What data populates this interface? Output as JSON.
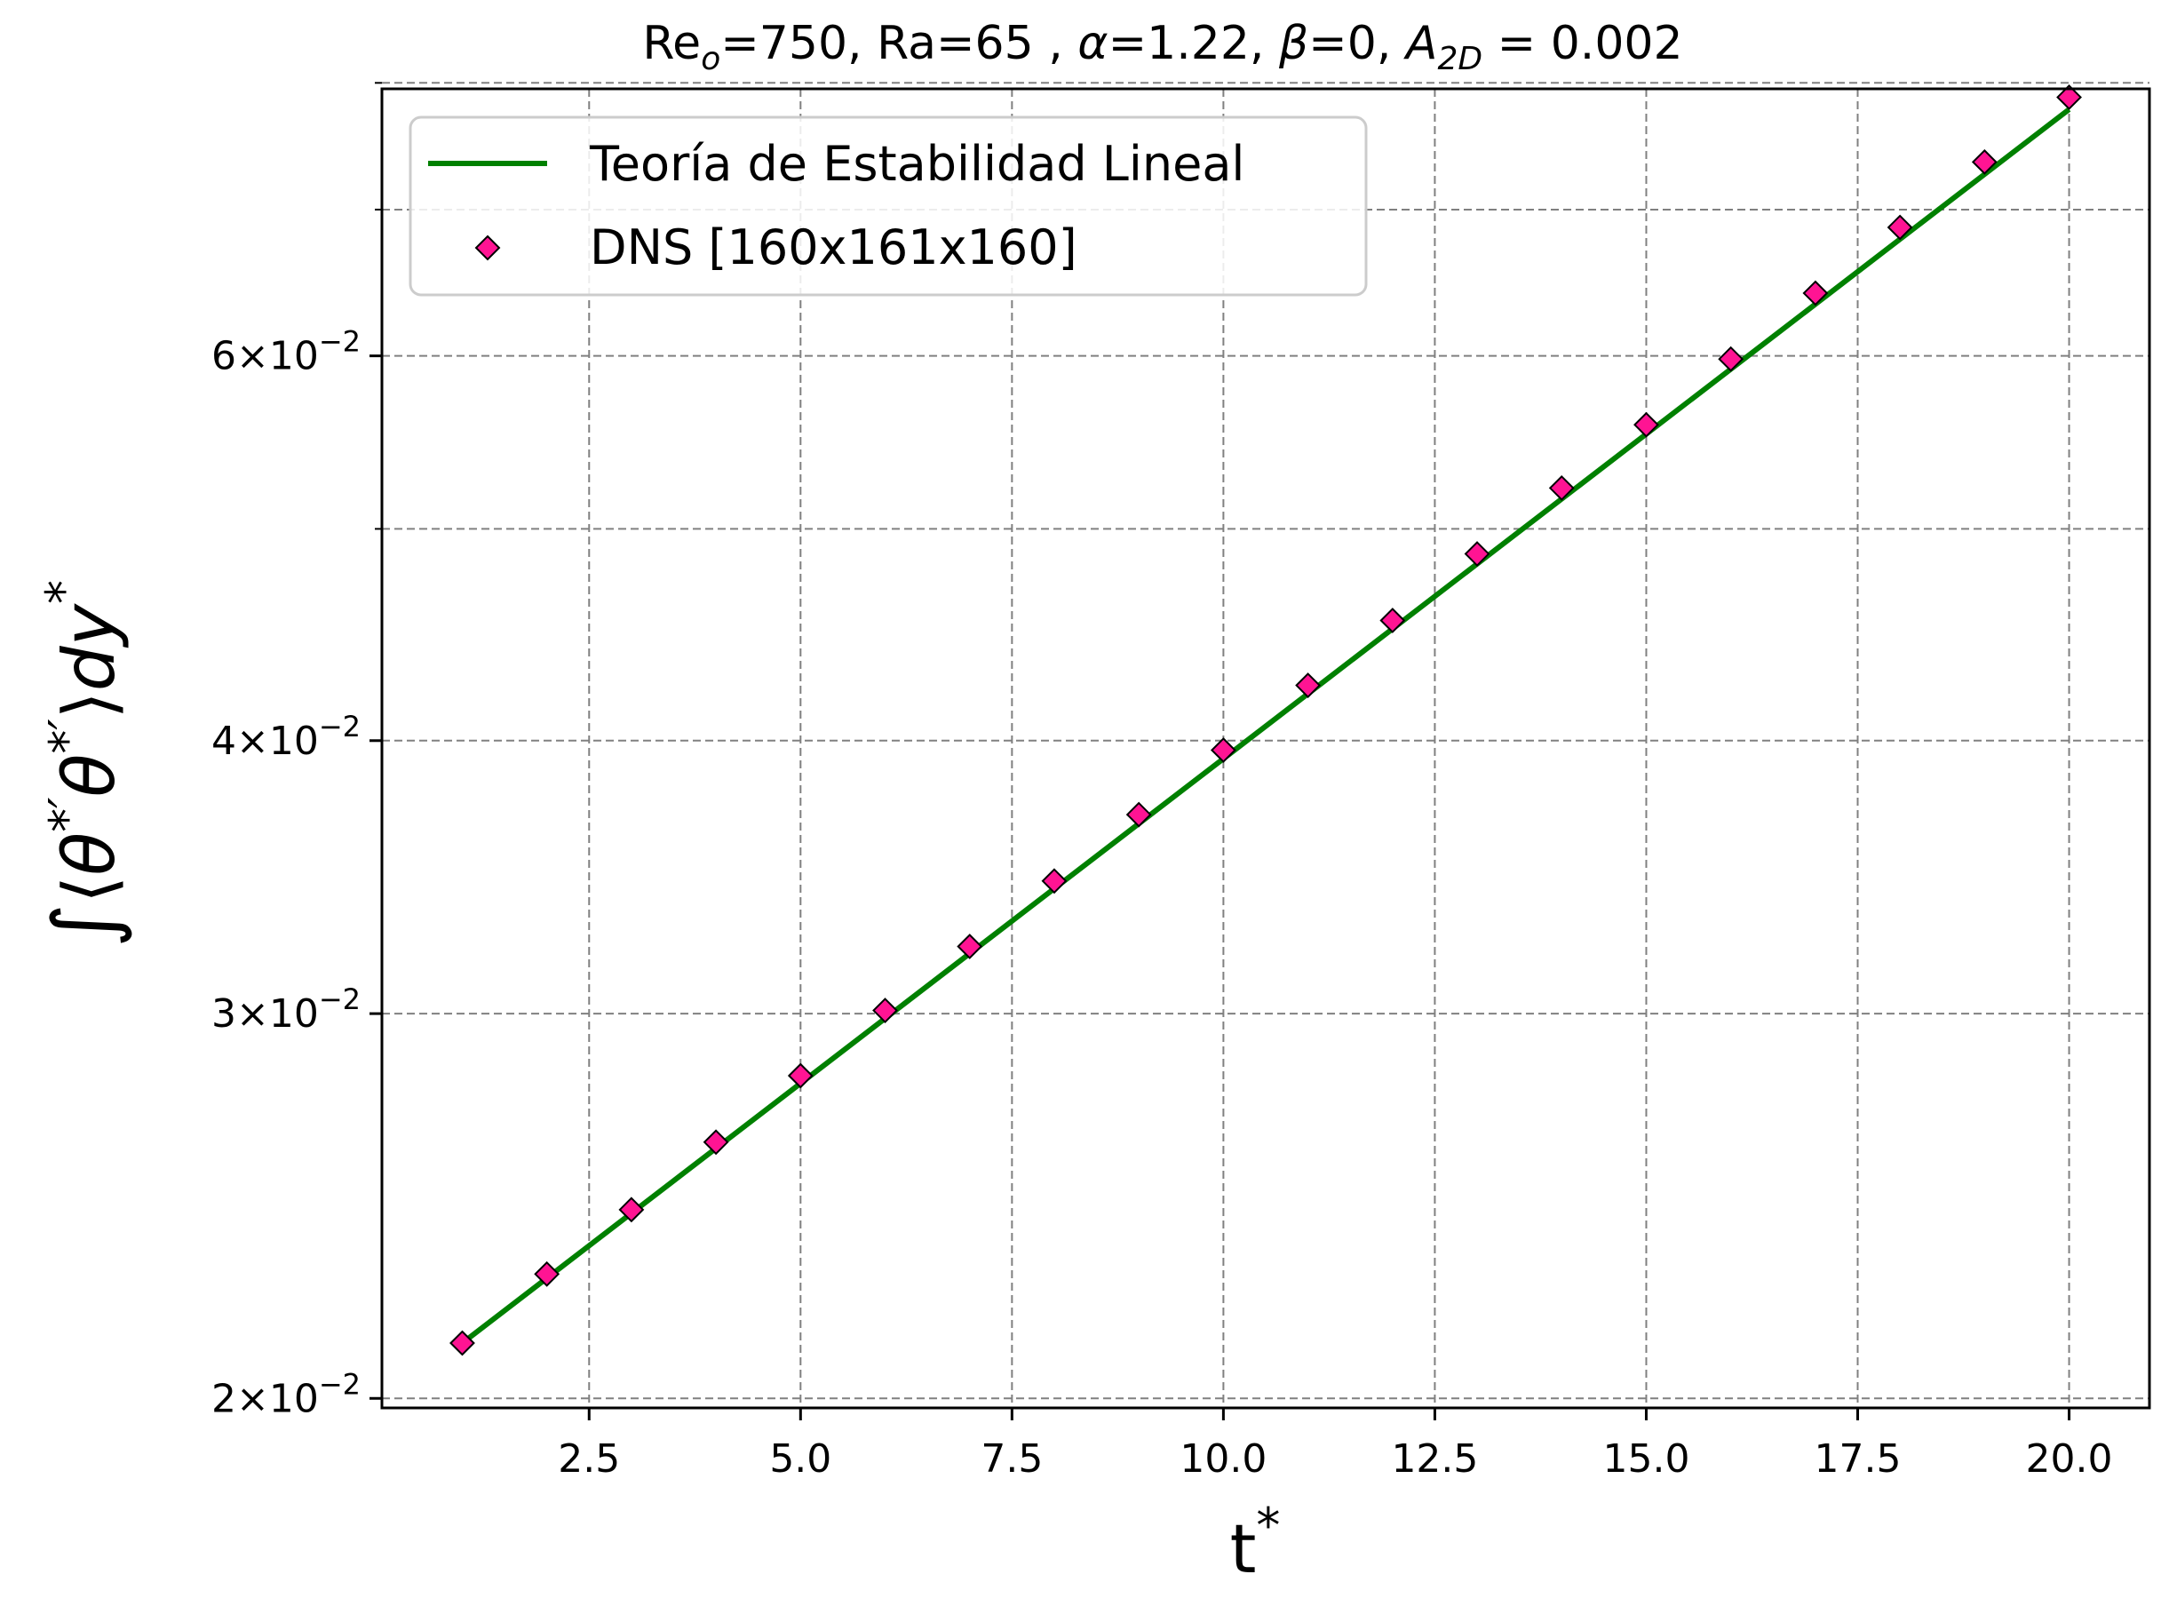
{
  "chart_data": {
    "type": "scatter",
    "title": {
      "re_base": "Re",
      "re_sub": "o",
      "re_value": "=750, Ra=65 , ",
      "alpha_sym": "α",
      "alpha_value": "=1.22, ",
      "beta_sym": "β",
      "beta_value": "=0, ",
      "a_sym": "A",
      "a_sub": "2D",
      "a_value": " = 0.002"
    },
    "xlabel": {
      "base": "t",
      "sup": "*"
    },
    "ylabel": {
      "integral": "∫",
      "open": "⟨",
      "theta1": "θ",
      "sup1": "*′",
      "theta2": "θ",
      "sup2": "*′",
      "close": "⟩",
      "dy": "dy",
      "sup3": "*"
    },
    "x_scale": "linear",
    "y_scale": "log",
    "xlim": [
      0.05,
      20.95
    ],
    "ylim": [
      0.0198,
      0.0795
    ],
    "x_ticks": [
      2.5,
      5.0,
      7.5,
      10.0,
      12.5,
      15.0,
      17.5,
      20.0
    ],
    "x_tick_labels": [
      "2.5",
      "5.0",
      "7.5",
      "10.0",
      "12.5",
      "15.0",
      "17.5",
      "20.0"
    ],
    "y_major_ticks": [
      {
        "value": 0.02,
        "mantissa": "2",
        "exponent": "−2"
      },
      {
        "value": 0.03,
        "mantissa": "3",
        "exponent": "−2"
      },
      {
        "value": 0.04,
        "mantissa": "4",
        "exponent": "−2"
      },
      {
        "value": 0.06,
        "mantissa": "6",
        "exponent": "−2"
      }
    ],
    "y_tick_times": "×10",
    "y_minor_ticks": [
      0.05,
      0.07,
      0.08
    ],
    "grid": true,
    "legend_position": "top-left",
    "series": [
      {
        "name": "Teoría de Estabilidad Lineal",
        "kind": "line",
        "color": "#008000",
        "x": [
          1,
          20
        ],
        "y": [
          0.0212,
          0.0778
        ]
      },
      {
        "name": "DNS [160x161x160]",
        "kind": "scatter",
        "marker": "diamond",
        "color": "#ff1493",
        "edge_color": "#000000",
        "x": [
          1,
          2,
          3,
          4,
          5,
          6,
          7,
          8,
          9,
          10,
          11,
          12,
          13,
          14,
          15,
          16,
          17,
          18,
          19,
          20
        ],
        "y": [
          0.0212,
          0.0228,
          0.0244,
          0.0262,
          0.0281,
          0.0301,
          0.0322,
          0.0345,
          0.037,
          0.0396,
          0.0424,
          0.0454,
          0.0487,
          0.0522,
          0.0558,
          0.0598,
          0.0641,
          0.0687,
          0.0736,
          0.0788
        ]
      }
    ]
  }
}
